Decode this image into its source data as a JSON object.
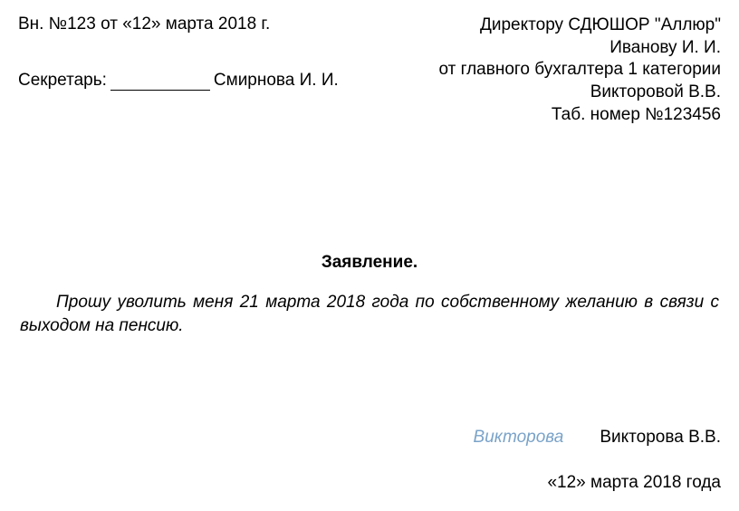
{
  "registration": {
    "line": "Вн. №123  от «12» марта 2018 г."
  },
  "secretary": {
    "label": "Секретарь:",
    "name": "Смирнова И. И."
  },
  "recipient": {
    "line1": "Директору  СДЮШОР \"Аллюр\"",
    "line2": "Иванову И. И.",
    "line3": "от главного бухгалтера 1 категории",
    "line4": "Викторовой В.В.",
    "line5": "Таб. номер №123456"
  },
  "title": "Заявление.",
  "body": "Прошу уволить меня 21 марта 2018 года по собственному желанию в связи с выходом на пенсию.",
  "signature": {
    "handwritten": "Викторова",
    "printed": "Викторова В.В."
  },
  "date": "«12» марта 2018 года"
}
